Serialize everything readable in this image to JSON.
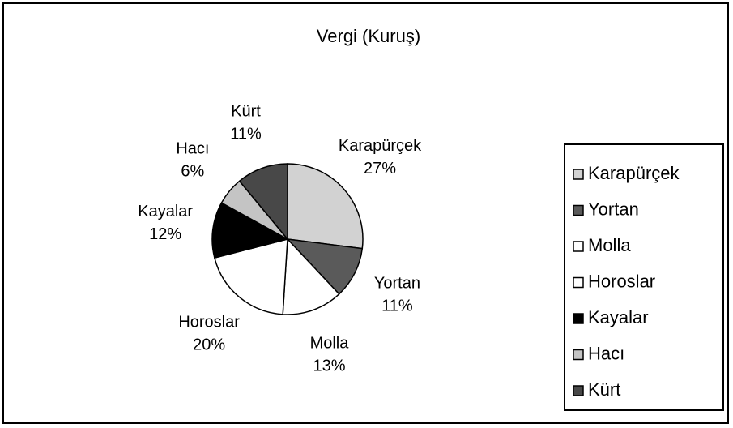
{
  "chart_data": {
    "type": "pie",
    "title": "Vergi (Kuruş)",
    "categories": [
      "Karapürçek",
      "Yortan",
      "Molla",
      "Horoslar",
      "Kayalar",
      "Hacı",
      "Kürt"
    ],
    "values": [
      27,
      11,
      13,
      20,
      12,
      6,
      11
    ],
    "value_labels": [
      "27%",
      "11%",
      "13%",
      "20%",
      "12%",
      "6%",
      "11%"
    ],
    "colors": [
      "#d2d2d2",
      "#5a5a5a",
      "#ffffff",
      "#ffffff",
      "#000000",
      "#c4c4c4",
      "#484848"
    ],
    "legend": "right"
  }
}
